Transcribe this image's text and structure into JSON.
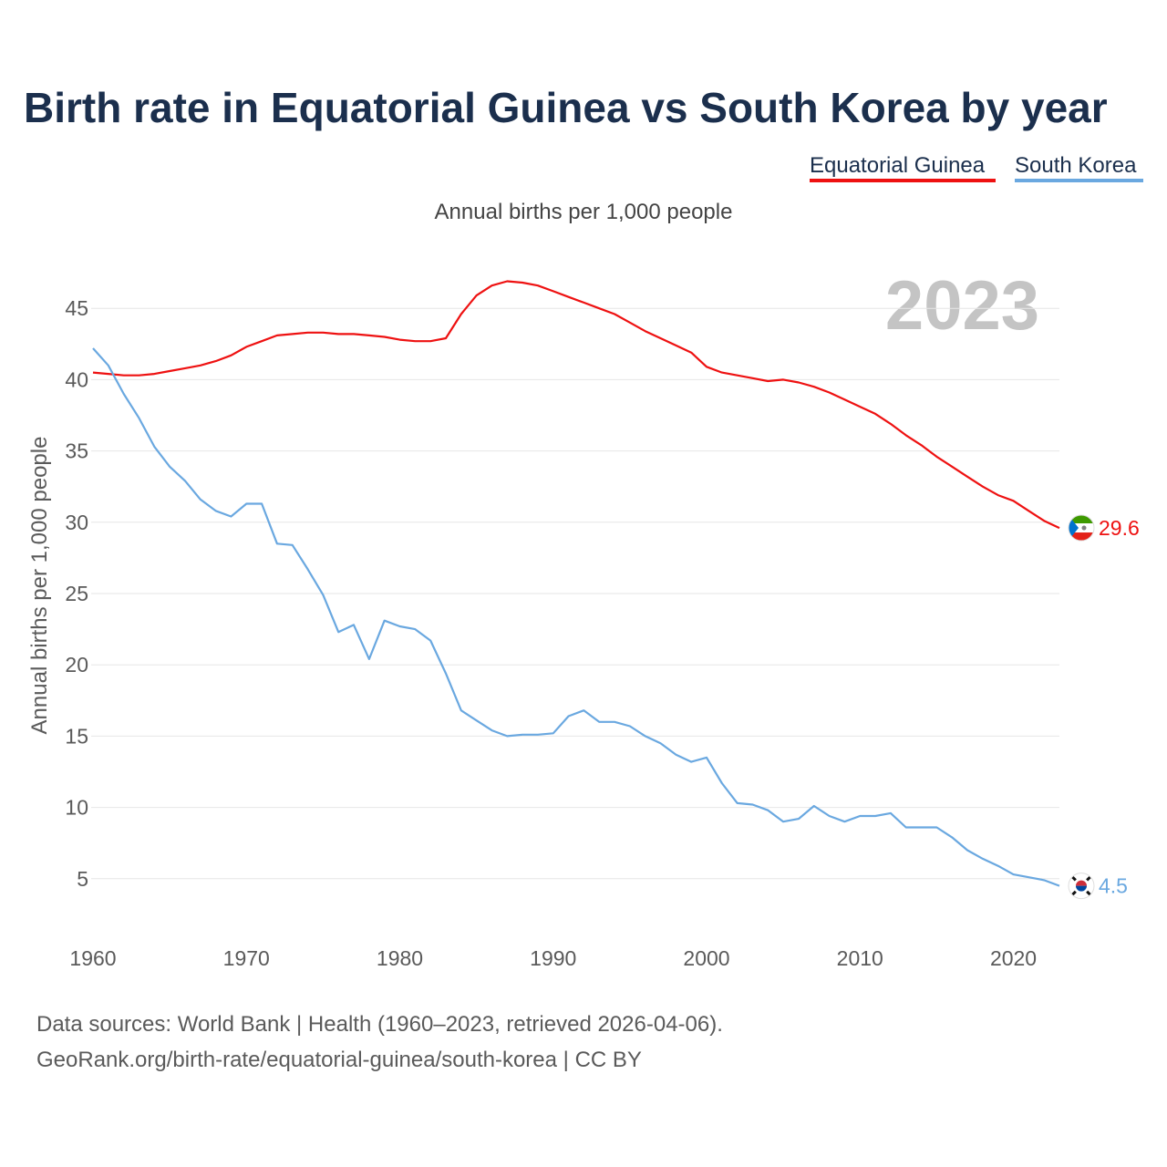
{
  "chart_data": {
    "type": "line",
    "title": "Birth rate in Equatorial Guinea vs South Korea by year",
    "subtitle": "Annual births per 1,000 people",
    "ylabel": "Annual births per 1,000 people",
    "xlabel": "",
    "x_range": [
      1960,
      2023
    ],
    "ylim": [
      0,
      48
    ],
    "x_ticks": [
      "1960",
      "1970",
      "1980",
      "1990",
      "2000",
      "2010",
      "2020"
    ],
    "y_ticks": [
      "5",
      "10",
      "15",
      "20",
      "25",
      "30",
      "35",
      "40",
      "45"
    ],
    "current_year": "2023",
    "x": [
      1960,
      1961,
      1962,
      1963,
      1964,
      1965,
      1966,
      1967,
      1968,
      1969,
      1970,
      1971,
      1972,
      1973,
      1974,
      1975,
      1976,
      1977,
      1978,
      1979,
      1980,
      1981,
      1982,
      1983,
      1984,
      1985,
      1986,
      1987,
      1988,
      1989,
      1990,
      1991,
      1992,
      1993,
      1994,
      1995,
      1996,
      1997,
      1998,
      1999,
      2000,
      2001,
      2002,
      2003,
      2004,
      2005,
      2006,
      2007,
      2008,
      2009,
      2010,
      2011,
      2012,
      2013,
      2014,
      2015,
      2016,
      2017,
      2018,
      2019,
      2020,
      2021,
      2022,
      2023
    ],
    "series": [
      {
        "name": "Equatorial Guinea",
        "color": "#ee1111",
        "end_label": "29.6",
        "flag": "equatorial-guinea-flag-icon",
        "values": [
          40.5,
          40.4,
          40.3,
          40.3,
          40.4,
          40.6,
          40.8,
          41.0,
          41.3,
          41.7,
          42.3,
          42.7,
          43.1,
          43.2,
          43.3,
          43.3,
          43.2,
          43.2,
          43.1,
          43.0,
          42.8,
          42.7,
          42.7,
          42.9,
          44.6,
          45.9,
          46.6,
          46.9,
          46.8,
          46.6,
          46.2,
          45.8,
          45.4,
          45.0,
          44.6,
          44.0,
          43.4,
          42.9,
          42.4,
          41.9,
          40.9,
          40.5,
          40.3,
          40.1,
          39.9,
          40.0,
          39.8,
          39.5,
          39.1,
          38.6,
          38.1,
          37.6,
          36.9,
          36.1,
          35.4,
          34.6,
          33.9,
          33.2,
          32.5,
          31.9,
          31.5,
          30.8,
          30.1,
          29.6
        ]
      },
      {
        "name": "South Korea",
        "color": "#6aa8e0",
        "end_label": "4.5",
        "flag": "south-korea-flag-icon",
        "values": [
          42.2,
          41.0,
          39.0,
          37.3,
          35.3,
          33.9,
          32.9,
          31.6,
          30.8,
          30.4,
          31.3,
          31.3,
          28.5,
          28.4,
          26.7,
          24.9,
          22.3,
          22.8,
          20.4,
          23.1,
          22.7,
          22.5,
          21.7,
          19.4,
          16.8,
          16.1,
          15.4,
          15.0,
          15.1,
          15.1,
          15.2,
          16.4,
          16.8,
          16.0,
          16.0,
          15.7,
          15.0,
          14.5,
          13.7,
          13.2,
          13.5,
          11.7,
          10.3,
          10.2,
          9.8,
          9.0,
          9.2,
          10.1,
          9.4,
          9.0,
          9.4,
          9.4,
          9.6,
          8.6,
          8.6,
          8.6,
          7.9,
          7.0,
          6.4,
          5.9,
          5.3,
          5.1,
          4.9,
          4.5
        ]
      }
    ]
  },
  "footer": {
    "source_line": "Data sources: World Bank | Health (1960–2023, retrieved 2026-04-06).",
    "link_line": "GeoRank.org/birth-rate/equatorial-guinea/south-korea | CC BY"
  }
}
